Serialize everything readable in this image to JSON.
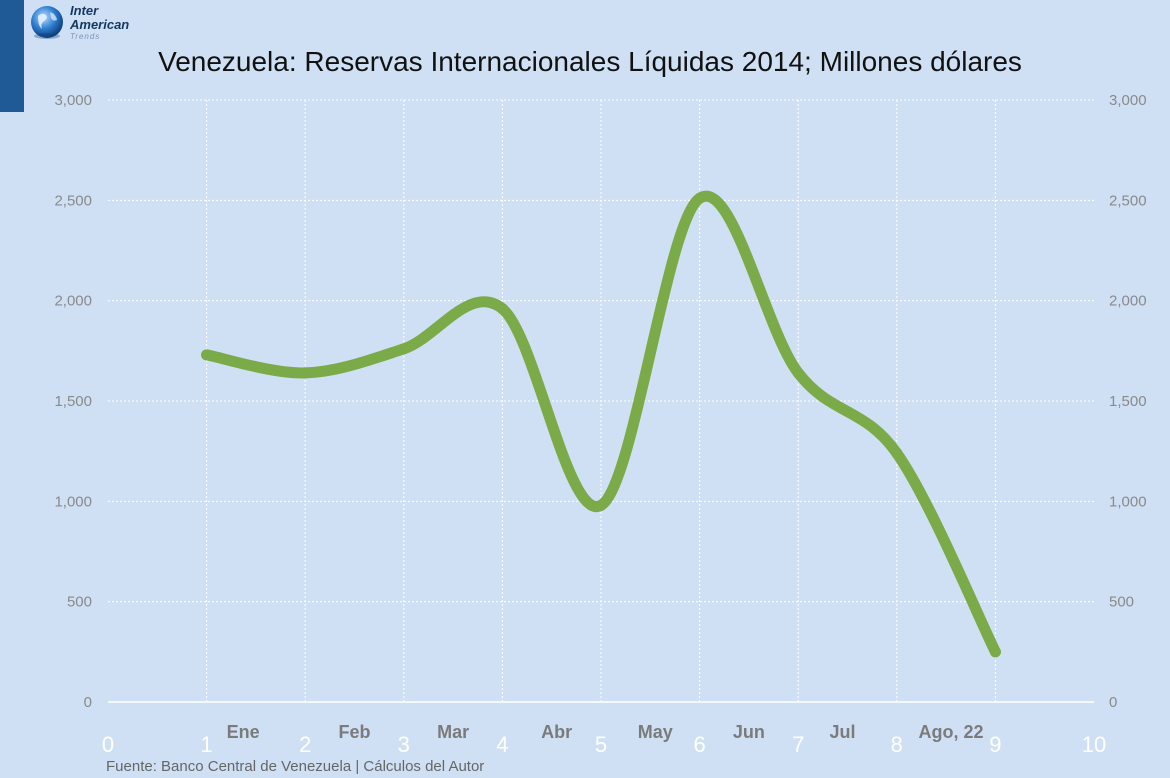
{
  "logo": {
    "line1": "Inter",
    "line2": "American",
    "line3": "Trends"
  },
  "title": "Venezuela: Reservas Internacionales Líquidas 2014; Millones dólares",
  "source": "Fuente: Banco Central de Venezuela | Cálculos del Autor",
  "colors": {
    "background": "#cfe0f5",
    "line": "#7aab48",
    "grid": "#ffffff"
  },
  "chart_data": {
    "type": "line",
    "title": "Venezuela: Reservas Internacionales Líquidas 2014; Millones dólares",
    "xlabel": "",
    "ylabel": "",
    "xlim": [
      0,
      10
    ],
    "ylim": [
      0,
      3000
    ],
    "x_ticks": [
      0,
      1,
      2,
      3,
      4,
      5,
      6,
      7,
      8,
      9,
      10
    ],
    "y_ticks": [
      0,
      500,
      1000,
      1500,
      2000,
      2500,
      3000
    ],
    "y_tick_labels": [
      "0",
      "500",
      "1,000",
      "1,500",
      "2,000",
      "2,500",
      "3,000"
    ],
    "categories": [
      "Ene",
      "Feb",
      "Mar",
      "Abr",
      "May",
      "Jun",
      "Jul",
      "Ago, 22"
    ],
    "category_x": [
      1.37,
      2.5,
      3.5,
      4.55,
      5.55,
      6.5,
      7.45,
      8.55
    ],
    "x": [
      1,
      2,
      3,
      4,
      5,
      6,
      7,
      8,
      9
    ],
    "values": [
      1730,
      1640,
      1760,
      1960,
      980,
      2510,
      1640,
      1240,
      250
    ],
    "grid": true,
    "axes": "left and right y-axes, identical scale",
    "legend": "none"
  }
}
